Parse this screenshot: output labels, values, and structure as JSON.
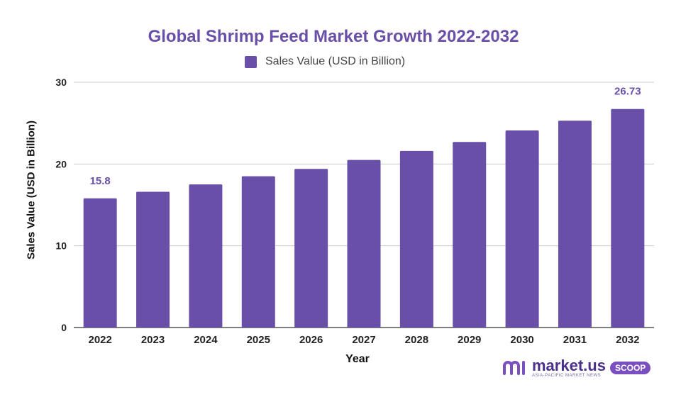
{
  "chart_data": {
    "type": "bar",
    "title": "Global Shrimp Feed Market Growth 2022-2032",
    "xlabel": "Year",
    "ylabel": "Sales Value (USD in Billion)",
    "legend": "top",
    "grid": true,
    "ylim": [
      0,
      30
    ],
    "yticks": [
      0,
      10,
      20,
      30
    ],
    "categories": [
      "2022",
      "2023",
      "2024",
      "2025",
      "2026",
      "2027",
      "2028",
      "2029",
      "2030",
      "2031",
      "2032"
    ],
    "series": [
      {
        "name": "Sales Value (USD in Billion)",
        "color": "#6a4fa8",
        "values": [
          15.8,
          16.6,
          17.5,
          18.5,
          19.4,
          20.5,
          21.6,
          22.7,
          24.1,
          25.3,
          26.73
        ]
      }
    ],
    "data_labels": [
      {
        "index": 0,
        "text": "15.8"
      },
      {
        "index": 10,
        "text": "26.73"
      }
    ]
  },
  "brand": {
    "name": "market.us",
    "tagline": "ASIA-PACIFIC MARKET NEWS",
    "badge": "SCOOP"
  }
}
